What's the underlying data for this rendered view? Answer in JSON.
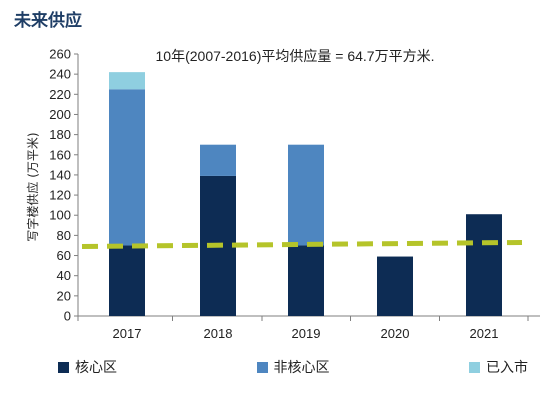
{
  "page": {
    "title": "未来供应"
  },
  "chart_data": {
    "type": "bar",
    "stacked": true,
    "categories": [
      "2017",
      "2018",
      "2019",
      "2020",
      "2021"
    ],
    "series": [
      {
        "name": "核心区",
        "color": "#0d2c54",
        "values": [
          70,
          139,
          70,
          59,
          101
        ]
      },
      {
        "name": "非核心区",
        "color": "#4e86c0",
        "values": [
          155,
          31,
          100,
          0,
          0
        ]
      },
      {
        "name": "已入市",
        "color": "#8fcfe0",
        "values": [
          17,
          0,
          0,
          0,
          0
        ]
      }
    ],
    "ylabel": "写字楼供应 (万平米)",
    "ylim": [
      0,
      260
    ],
    "yticks": [
      0,
      20,
      40,
      60,
      80,
      100,
      120,
      140,
      160,
      180,
      200,
      220,
      240,
      260
    ],
    "grid": false,
    "legend_position": "bottom",
    "annotation": "10年(2007-2016)平均供应量 = 64.7万平方米.",
    "average_line": {
      "color": "#b5c42a",
      "start_value": 69,
      "end_value": 73
    }
  }
}
